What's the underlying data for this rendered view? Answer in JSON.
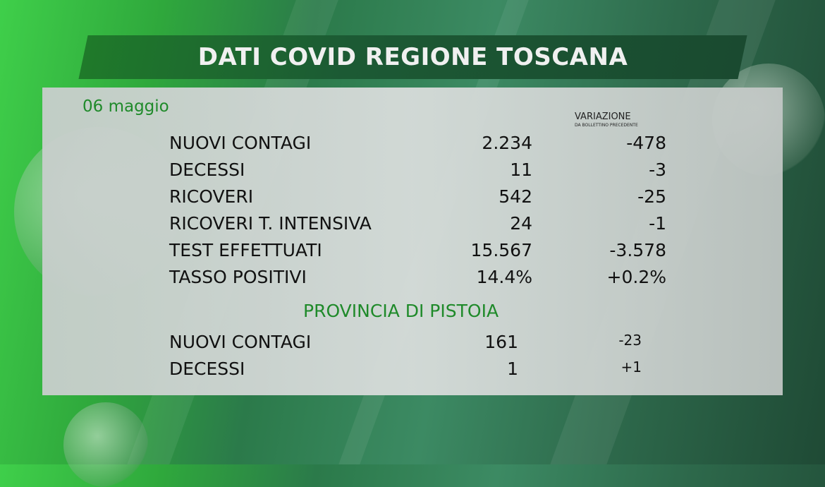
{
  "title": "DATI COVID REGIONE TOSCANA",
  "date": "06 maggio",
  "variation_header": "VARIAZIONE",
  "variation_sub": "DA BOLLETTINO PRECEDENTE",
  "region_rows": [
    {
      "label": "NUOVI CONTAGI",
      "value": "2.234",
      "delta": "-478"
    },
    {
      "label": "DECESSI",
      "value": "11",
      "delta": "-3"
    },
    {
      "label": "RICOVERI",
      "value": "542",
      "delta": "-25"
    },
    {
      "label": "RICOVERI T. INTENSIVA",
      "value": "24",
      "delta": "-1"
    },
    {
      "label": "TEST EFFETTUATI",
      "value": "15.567",
      "delta": "-3.578"
    },
    {
      "label": "TASSO POSITIVI",
      "value": "14.4%",
      "delta": "+0.2%"
    }
  ],
  "province_title": "PROVINCIA DI PISTOIA",
  "province_rows": [
    {
      "label": "NUOVI CONTAGI",
      "value": "161",
      "delta": "-23"
    },
    {
      "label": "DECESSI",
      "value": "1",
      "delta": "+1"
    }
  ],
  "colors": {
    "accent_green": "#1f8a2a",
    "title_bar": "#1c5a34"
  }
}
